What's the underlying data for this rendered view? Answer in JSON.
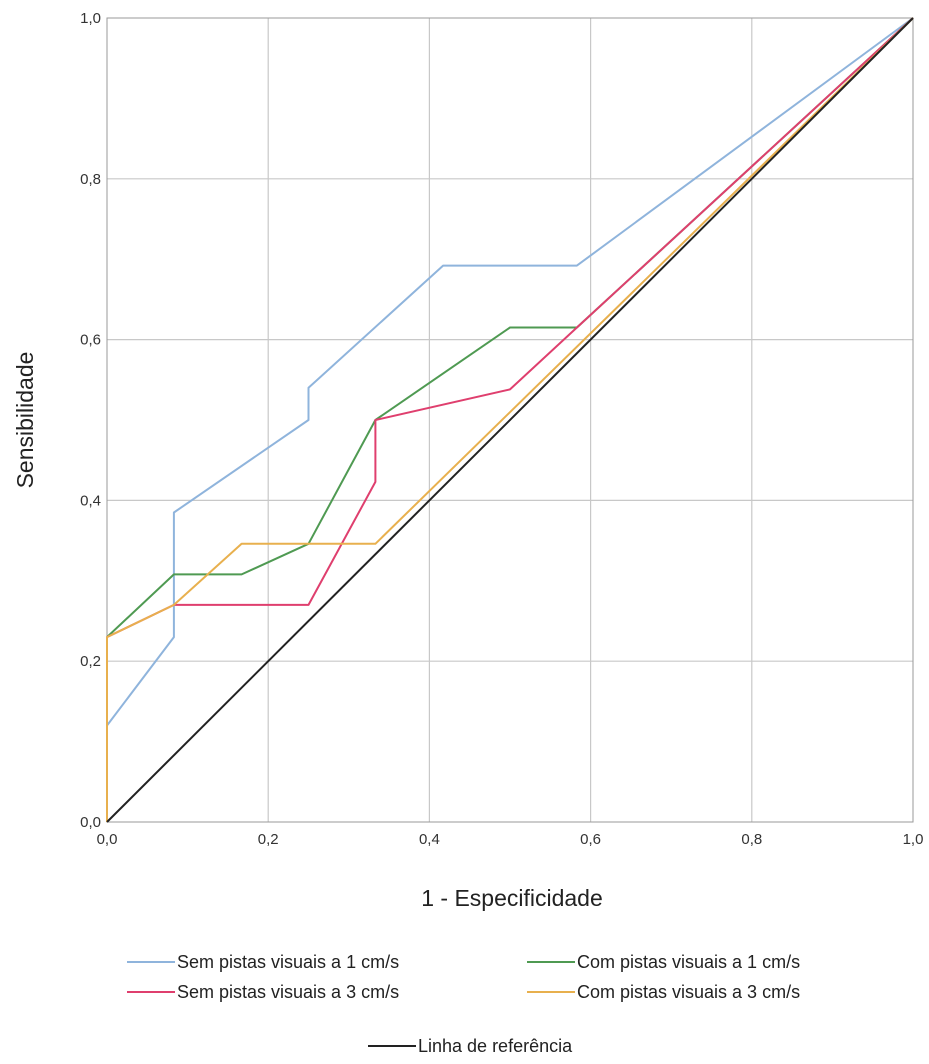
{
  "chart_data": {
    "type": "line",
    "title": "",
    "xlabel": "1 - Especificidade",
    "ylabel": "Sensibilidade",
    "xlim": [
      0,
      1
    ],
    "ylim": [
      0,
      1
    ],
    "grid": true,
    "legend_position": "bottom",
    "x_ticks": [
      "0,0",
      "0,2",
      "0,4",
      "0,6",
      "0,8",
      "1,0"
    ],
    "y_ticks": [
      "0,0",
      "0,2",
      "0,4",
      "0,6",
      "0,8",
      "1,0"
    ],
    "series": [
      {
        "name": "Sem pistas visuais a 1 cm/s",
        "color": "#8fb4dc",
        "points": [
          [
            0,
            0
          ],
          [
            0,
            0.12
          ],
          [
            0.083,
            0.23
          ],
          [
            0.083,
            0.385
          ],
          [
            0.25,
            0.5
          ],
          [
            0.25,
            0.54
          ],
          [
            0.417,
            0.692
          ],
          [
            0.583,
            0.692
          ],
          [
            1,
            1
          ]
        ]
      },
      {
        "name": "Com pistas visuais a 1 cm/s",
        "color": "#4f9a52",
        "points": [
          [
            0,
            0
          ],
          [
            0,
            0.23
          ],
          [
            0.083,
            0.308
          ],
          [
            0.167,
            0.308
          ],
          [
            0.25,
            0.346
          ],
          [
            0.333,
            0.5
          ],
          [
            0.5,
            0.615
          ],
          [
            0.583,
            0.615
          ],
          [
            1,
            1
          ]
        ]
      },
      {
        "name": "Sem pistas visuais a 3 cm/s",
        "color": "#df3f6e",
        "points": [
          [
            0,
            0
          ],
          [
            0,
            0.23
          ],
          [
            0.083,
            0.27
          ],
          [
            0.25,
            0.27
          ],
          [
            0.333,
            0.423
          ],
          [
            0.333,
            0.5
          ],
          [
            0.5,
            0.538
          ],
          [
            0.583,
            0.615
          ],
          [
            1,
            1
          ]
        ]
      },
      {
        "name": "Com pistas visuais a 3 cm/s",
        "color": "#e8b04e",
        "points": [
          [
            0,
            0
          ],
          [
            0,
            0.23
          ],
          [
            0.083,
            0.27
          ],
          [
            0.167,
            0.346
          ],
          [
            0.333,
            0.346
          ],
          [
            1,
            1
          ]
        ]
      },
      {
        "name": "Linha de referência",
        "color": "#222222",
        "points": [
          [
            0,
            0
          ],
          [
            1,
            1
          ]
        ]
      }
    ]
  }
}
